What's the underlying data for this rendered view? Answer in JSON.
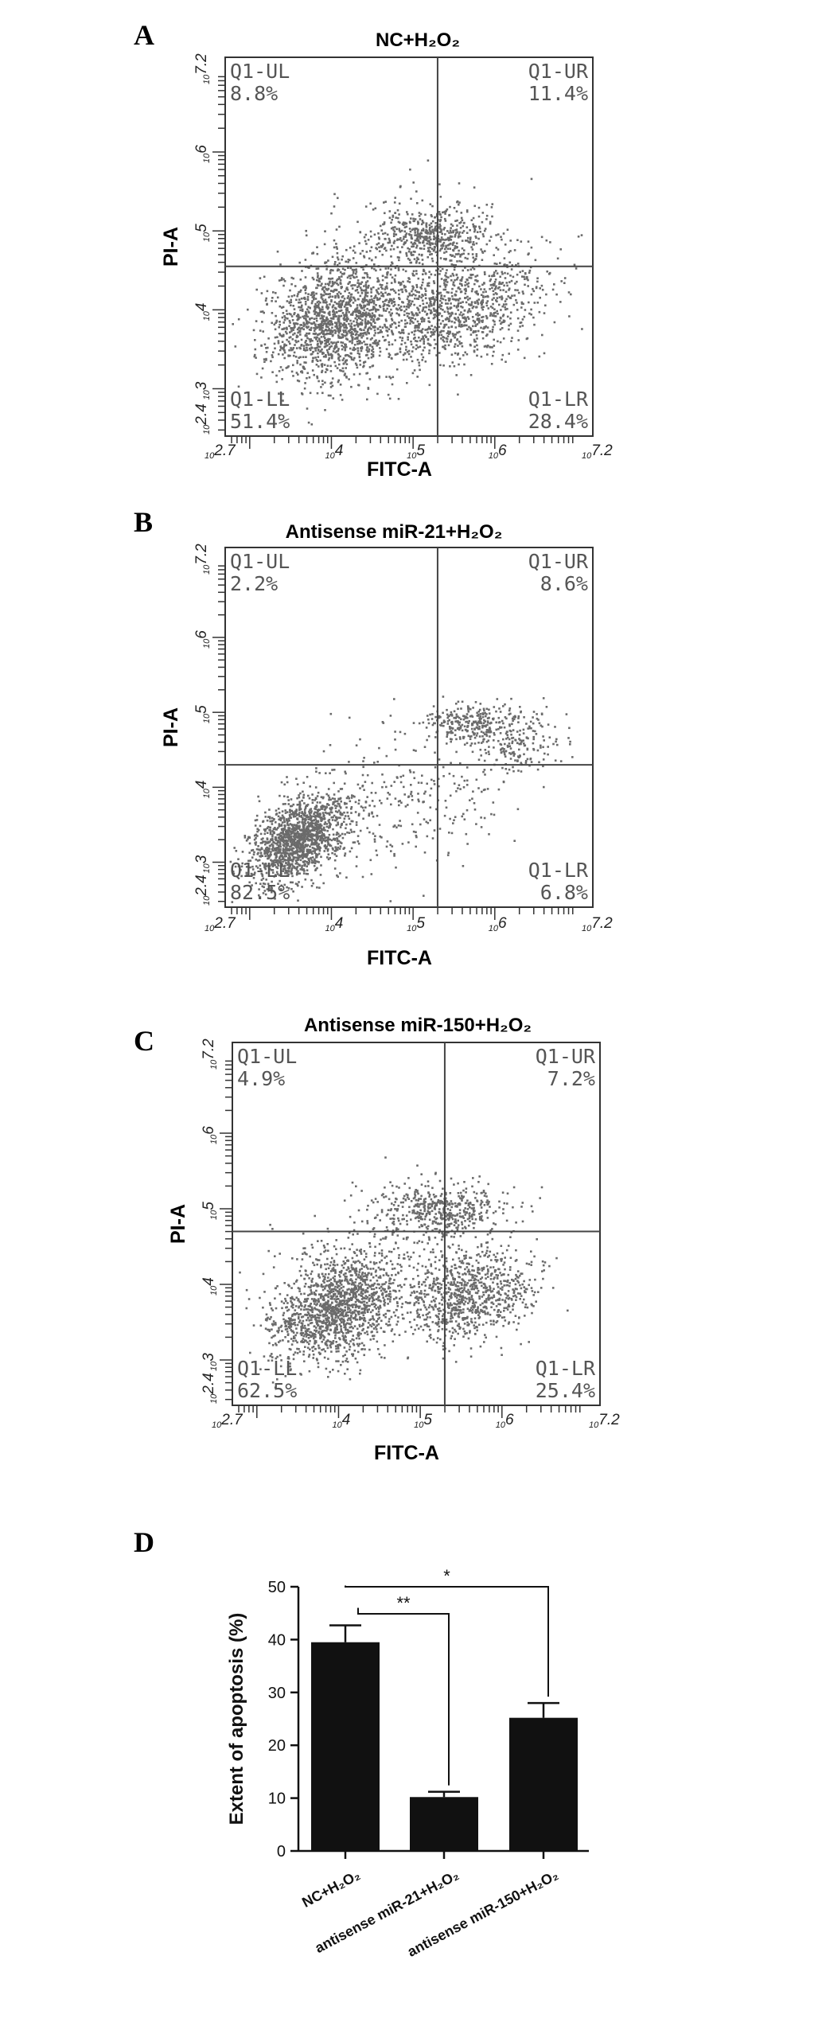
{
  "panels": [
    {
      "letter": "A",
      "title": "NC+H₂O₂"
    },
    {
      "letter": "B",
      "title": "Antisense miR-21+H₂O₂"
    },
    {
      "letter": "C",
      "title": "Antisense miR-150+H₂O₂"
    },
    {
      "letter": "D",
      "title": ""
    }
  ],
  "chart_data": [
    {
      "type": "scatter",
      "title": "NC+H₂O₂",
      "xlabel": "FITC-A",
      "ylabel": "PI-A",
      "log_scale": true,
      "xlim": [
        2.7,
        7.2
      ],
      "ylim": [
        2.4,
        7.2
      ],
      "x_ticks": [
        "10^2.7",
        "10^4",
        "10^5",
        "10^6",
        "10^7.2"
      ],
      "y_ticks": [
        "10^2.4",
        "10^3",
        "10^4",
        "10^5",
        "10^6",
        "10^7.2"
      ],
      "gate": {
        "x": 5.3,
        "y": 4.55
      },
      "quadrants": [
        {
          "name": "Q1-UL",
          "percent": "8.8%"
        },
        {
          "name": "Q1-UR",
          "percent": "11.4%"
        },
        {
          "name": "Q1-LL",
          "percent": "51.4%"
        },
        {
          "name": "Q1-LR",
          "percent": "28.4%"
        }
      ],
      "clusters": [
        {
          "cx": 4.05,
          "cy": 3.85,
          "sx": 0.45,
          "sy": 0.35,
          "n": 1400,
          "rot": 0.5
        },
        {
          "cx": 5.55,
          "cy": 4.0,
          "sx": 0.55,
          "sy": 0.32,
          "n": 1000,
          "rot": 0.3
        },
        {
          "cx": 5.25,
          "cy": 4.95,
          "sx": 0.35,
          "sy": 0.17,
          "n": 450,
          "rot": 0.0
        },
        {
          "cx": 4.6,
          "cy": 4.4,
          "sx": 0.7,
          "sy": 0.45,
          "n": 350,
          "rot": 0.3
        }
      ]
    },
    {
      "type": "scatter",
      "title": "Antisense miR-21+H₂O₂",
      "xlabel": "FITC-A",
      "ylabel": "PI-A",
      "log_scale": true,
      "xlim": [
        2.7,
        7.2
      ],
      "ylim": [
        2.4,
        7.2
      ],
      "x_ticks": [
        "10^2.7",
        "10^4",
        "10^5",
        "10^6",
        "10^7.2"
      ],
      "y_ticks": [
        "10^2.4",
        "10^3",
        "10^4",
        "10^5",
        "10^6",
        "10^7.2"
      ],
      "gate": {
        "x": 5.3,
        "y": 4.3
      },
      "quadrants": [
        {
          "name": "Q1-UL",
          "percent": "2.2%"
        },
        {
          "name": "Q1-UR",
          "percent": "8.6%"
        },
        {
          "name": "Q1-LL",
          "percent": "82.5%"
        },
        {
          "name": "Q1-LR",
          "percent": "6.8%"
        }
      ],
      "clusters": [
        {
          "cx": 3.6,
          "cy": 3.3,
          "sx": 0.35,
          "sy": 0.22,
          "n": 1500,
          "rot": 0.75
        },
        {
          "cx": 5.7,
          "cy": 4.85,
          "sx": 0.28,
          "sy": 0.13,
          "n": 260,
          "rot": 0.0
        },
        {
          "cx": 6.3,
          "cy": 4.6,
          "sx": 0.25,
          "sy": 0.25,
          "n": 180,
          "rot": 0.6
        },
        {
          "cx": 4.8,
          "cy": 3.8,
          "sx": 0.8,
          "sy": 0.5,
          "n": 320,
          "rot": 0.3
        }
      ]
    },
    {
      "type": "scatter",
      "title": "Antisense miR-150+H₂O₂",
      "xlabel": "FITC-A",
      "ylabel": "PI-A",
      "log_scale": true,
      "xlim": [
        2.7,
        7.2
      ],
      "ylim": [
        2.4,
        7.2
      ],
      "x_ticks": [
        "10^2.7",
        "10^4",
        "10^5",
        "10^6",
        "10^7.2"
      ],
      "y_ticks": [
        "10^2.4",
        "10^3",
        "10^4",
        "10^5",
        "10^6",
        "10^7.2"
      ],
      "gate": {
        "x": 5.3,
        "y": 4.7
      },
      "quadrants": [
        {
          "name": "Q1-UL",
          "percent": "4.9%"
        },
        {
          "name": "Q1-UR",
          "percent": "7.2%"
        },
        {
          "name": "Q1-LL",
          "percent": "62.5%"
        },
        {
          "name": "Q1-LR",
          "percent": "25.4%"
        }
      ],
      "clusters": [
        {
          "cx": 3.95,
          "cy": 3.65,
          "sx": 0.45,
          "sy": 0.3,
          "n": 1400,
          "rot": 0.55
        },
        {
          "cx": 5.6,
          "cy": 3.85,
          "sx": 0.4,
          "sy": 0.3,
          "n": 850,
          "rot": 0.35
        },
        {
          "cx": 5.25,
          "cy": 5.0,
          "sx": 0.4,
          "sy": 0.16,
          "n": 450,
          "rot": 0.0
        },
        {
          "cx": 4.6,
          "cy": 4.3,
          "sx": 0.7,
          "sy": 0.45,
          "n": 300,
          "rot": 0.3
        }
      ]
    },
    {
      "type": "bar",
      "categories": [
        "NC+H₂O₂",
        "antisense miR-21+H₂O₂",
        "antisense miR-150+H₂O₂"
      ],
      "values": [
        39.5,
        10.2,
        25.2
      ],
      "errors": [
        3.2,
        1.0,
        2.8
      ],
      "ylabel": "Extent of apoptosis (%)",
      "ylim": [
        0,
        50
      ],
      "yticks": [
        0,
        10,
        20,
        30,
        40,
        50
      ],
      "significance": [
        {
          "from": 0,
          "to": 1,
          "label": "**"
        },
        {
          "from": 0,
          "to": 2,
          "label": "*"
        }
      ],
      "bar_color": "#111111"
    }
  ]
}
